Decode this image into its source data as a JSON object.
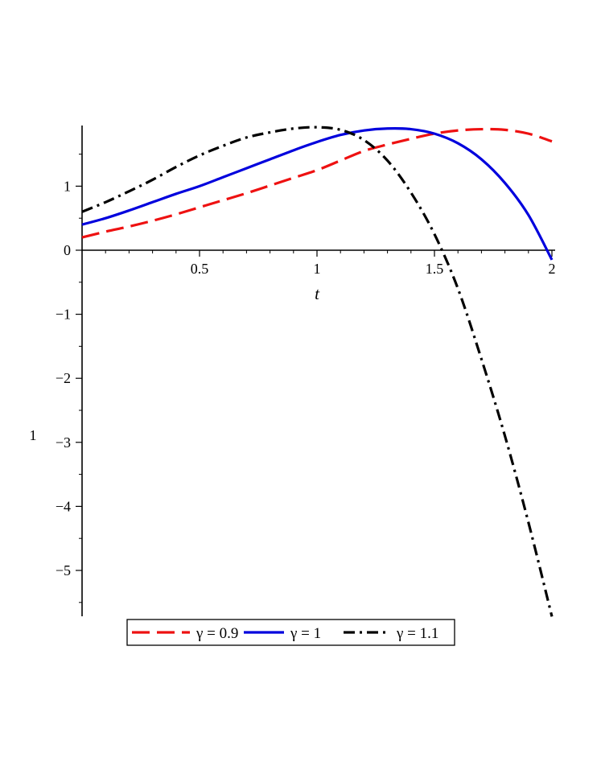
{
  "chart_data": {
    "type": "line",
    "title": "",
    "xlabel": "t",
    "ylabel": "1",
    "xlim": [
      0,
      2
    ],
    "ylim": [
      -5.75,
      1.92
    ],
    "xticks": [
      0.5,
      1,
      1.5,
      2
    ],
    "xtick_labels": [
      "0.5",
      "1",
      "1.5",
      "2"
    ],
    "yticks": [
      -5,
      -4,
      -3,
      -2,
      -1,
      0,
      1
    ],
    "ytick_labels": [
      "−5",
      "−4",
      "−3",
      "−2",
      "−1",
      "0",
      "1"
    ],
    "grid": false,
    "legend_position": "bottom",
    "x": [
      0,
      0.1,
      0.2,
      0.3,
      0.4,
      0.5,
      0.6,
      0.7,
      0.8,
      0.9,
      1.0,
      1.1,
      1.2,
      1.3,
      1.4,
      1.5,
      1.6,
      1.7,
      1.8,
      1.9,
      2.0
    ],
    "series": [
      {
        "name": "γ = 0.9",
        "color": "#ee1111",
        "dash": "dashed",
        "values": [
          0.2,
          0.29,
          0.37,
          0.46,
          0.56,
          0.67,
          0.78,
          0.89,
          1.01,
          1.13,
          1.25,
          1.4,
          1.55,
          1.65,
          1.74,
          1.82,
          1.87,
          1.89,
          1.88,
          1.82,
          1.7
        ]
      },
      {
        "name": "γ = 1",
        "color": "#0000dd",
        "dash": "solid",
        "values": [
          0.4,
          0.5,
          0.62,
          0.75,
          0.88,
          1.0,
          1.14,
          1.28,
          1.42,
          1.56,
          1.69,
          1.8,
          1.87,
          1.9,
          1.89,
          1.82,
          1.67,
          1.42,
          1.05,
          0.55,
          -0.15
        ]
      },
      {
        "name": "γ = 1.1",
        "color": "#000000",
        "dash": "dashdot",
        "values": [
          0.6,
          0.75,
          0.92,
          1.1,
          1.3,
          1.48,
          1.63,
          1.76,
          1.84,
          1.9,
          1.92,
          1.88,
          1.72,
          1.4,
          0.9,
          0.25,
          -0.6,
          -1.7,
          -2.9,
          -4.25,
          -5.72
        ]
      }
    ]
  }
}
